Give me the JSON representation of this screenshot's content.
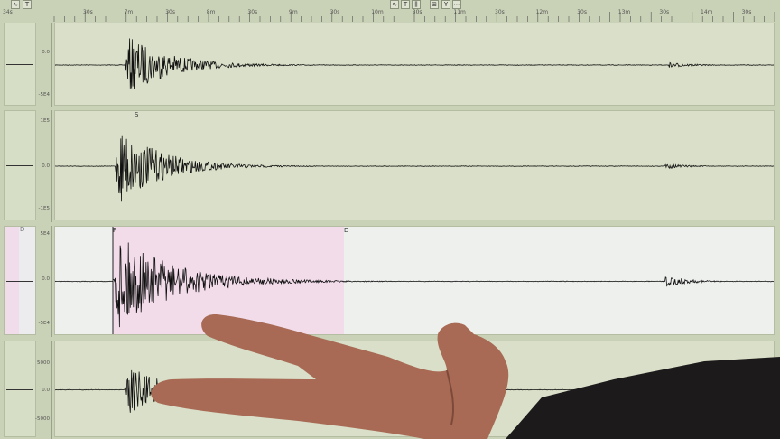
{
  "toolbar": {
    "buttons": [
      {
        "icon": "wave-icon",
        "label": "∿"
      },
      {
        "icon": "text-icon",
        "label": "T"
      },
      {
        "icon": "wave-icon",
        "label": "∿"
      },
      {
        "icon": "text-icon",
        "label": "T"
      },
      {
        "icon": "filter-icon",
        "label": "⫼"
      },
      {
        "icon": "grid-icon",
        "label": "⊞"
      },
      {
        "icon": "y-axis-icon",
        "label": "Y"
      },
      {
        "icon": "dots-icon",
        "label": "⋯"
      }
    ]
  },
  "time_axis": {
    "labels": [
      "34s",
      "30s",
      "7m",
      "30s",
      "8m",
      "30s",
      "9m",
      "30s",
      "10m",
      "30s",
      "11m",
      "30s",
      "12m",
      "30s",
      "13m",
      "30s",
      "14m",
      "30s"
    ]
  },
  "channels": [
    {
      "scale": [
        "0.0",
        "-5E4"
      ],
      "markers": [],
      "highlight": false
    },
    {
      "scale": [
        "1E5",
        "0.0",
        "-1E5"
      ],
      "markers": [
        "S"
      ],
      "highlight": false
    },
    {
      "scale": [
        "5E4",
        "0.0",
        "-5E4"
      ],
      "markers": [
        "P",
        "D",
        "D"
      ],
      "highlight": true
    },
    {
      "scale": [
        "5000",
        "0.0",
        "-5000"
      ],
      "markers": [],
      "highlight": false
    }
  ],
  "colors": {
    "background": "#d9dfc8",
    "highlight_panel": "#eef0ee",
    "pick_window": "#f2dcea",
    "trace": "#111111",
    "skin": "#b0705a"
  }
}
